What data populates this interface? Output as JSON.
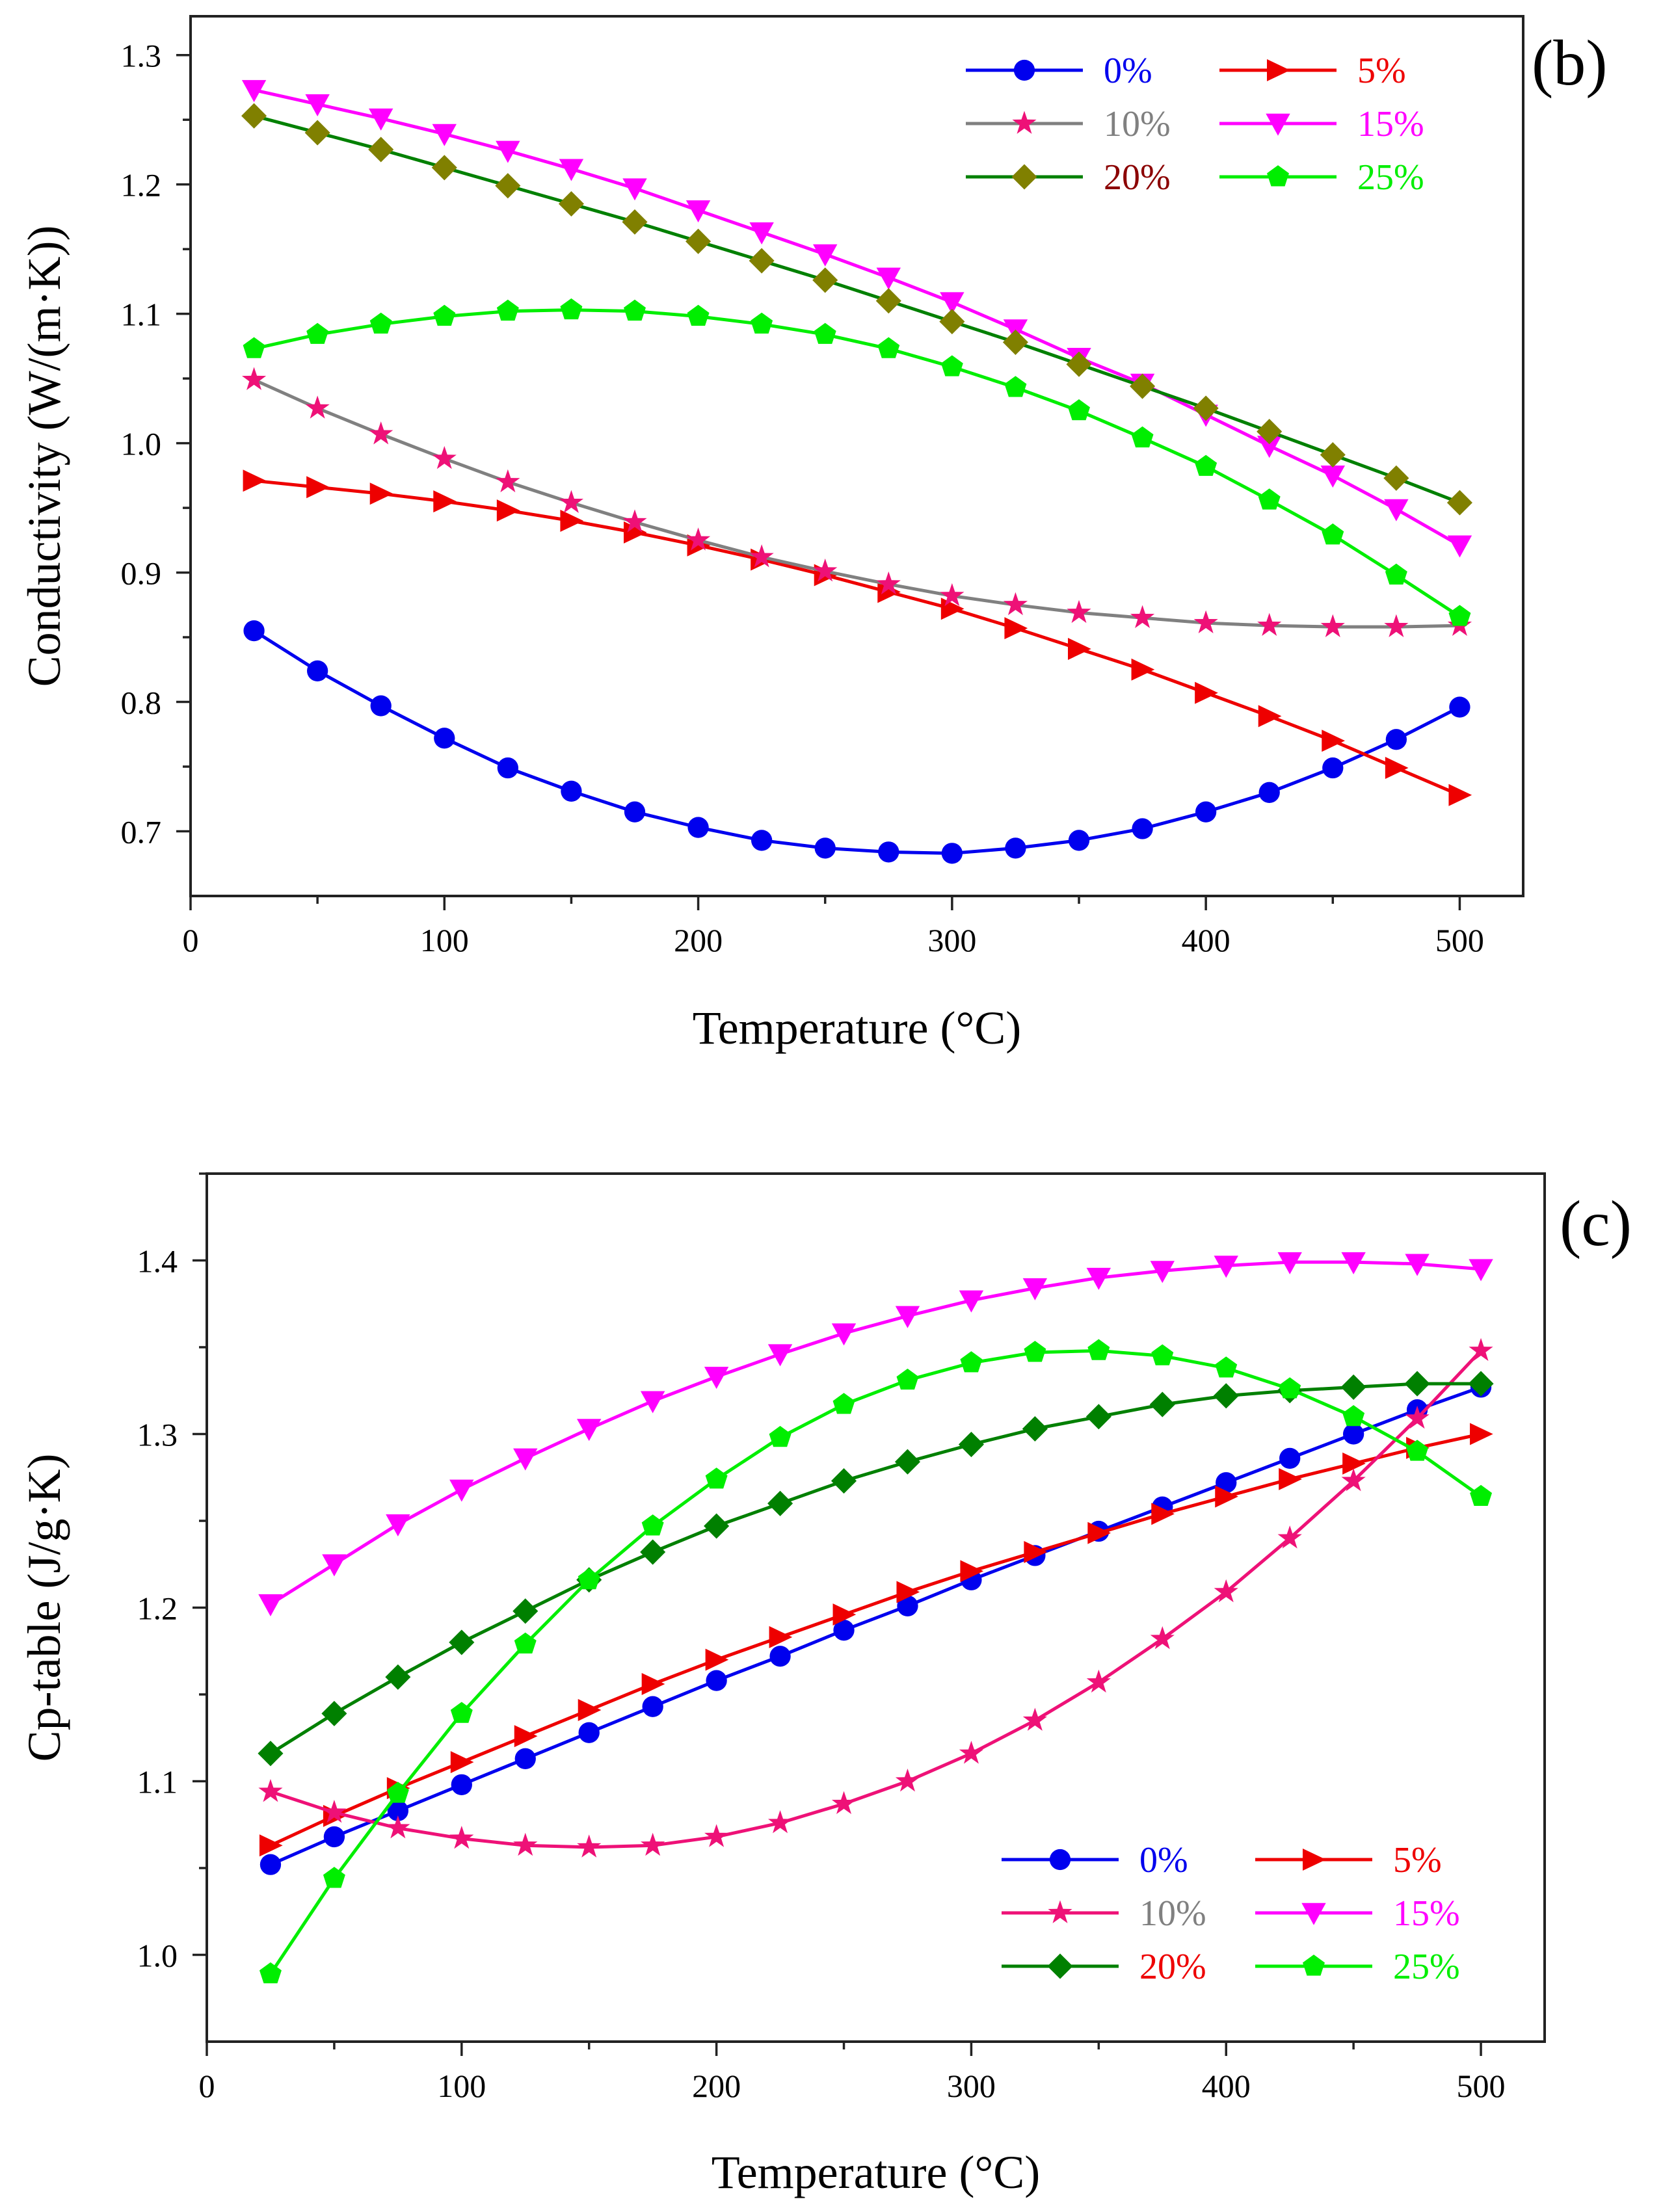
{
  "chart_data": [
    {
      "type": "line",
      "panel_label": "(b)",
      "xlabel": "Temperature (°C)",
      "ylabel": "Conductivity (W/(m·K))",
      "xlim": [
        0,
        525
      ],
      "ylim": [
        0.65,
        1.33
      ],
      "xticks": [
        0,
        100,
        200,
        300,
        400,
        500
      ],
      "xtick_labels": [
        "0",
        "100",
        "200",
        "300",
        "400",
        "500"
      ],
      "yticks": [
        0.7,
        0.8,
        0.9,
        1.0,
        1.1,
        1.2,
        1.3
      ],
      "ytick_labels": [
        "0.7",
        "0.8",
        "0.9",
        "1.0",
        "1.1",
        "1.2",
        "1.3"
      ],
      "legend_position": "top-right",
      "x": [
        25,
        50,
        75,
        100,
        125,
        150,
        175,
        200,
        225,
        250,
        275,
        300,
        325,
        350,
        375,
        400,
        425,
        450,
        475,
        500
      ],
      "series": [
        {
          "name": "0%",
          "line_color": "#0000EE",
          "label_color": "#0000EE",
          "marker": "circle",
          "values": [
            0.855,
            0.824,
            0.797,
            0.772,
            0.749,
            0.731,
            0.715,
            0.703,
            0.693,
            0.687,
            0.684,
            0.683,
            0.687,
            0.693,
            0.702,
            0.715,
            0.73,
            0.749,
            0.771,
            0.796
          ]
        },
        {
          "name": "5%",
          "line_color": "#EE0000",
          "label_color": "#EE0000",
          "marker": "triangle-right",
          "values": [
            0.971,
            0.966,
            0.961,
            0.955,
            0.948,
            0.94,
            0.931,
            0.921,
            0.91,
            0.898,
            0.885,
            0.872,
            0.857,
            0.841,
            0.825,
            0.807,
            0.789,
            0.77,
            0.749,
            0.728
          ]
        },
        {
          "name": "10%",
          "line_color": "#808080",
          "label_color": "#808080",
          "marker": "star",
          "marker_color": "#EE1177",
          "values": [
            1.049,
            1.027,
            1.007,
            0.988,
            0.97,
            0.954,
            0.939,
            0.925,
            0.912,
            0.901,
            0.891,
            0.882,
            0.875,
            0.869,
            0.865,
            0.861,
            0.859,
            0.858,
            0.858,
            0.859
          ]
        },
        {
          "name": "15%",
          "line_color": "#FF00FF",
          "label_color": "#FF00FF",
          "marker": "triangle-down",
          "values": [
            1.273,
            1.262,
            1.251,
            1.239,
            1.226,
            1.212,
            1.197,
            1.18,
            1.163,
            1.146,
            1.128,
            1.109,
            1.088,
            1.066,
            1.046,
            1.022,
            0.998,
            0.975,
            0.949,
            0.921
          ]
        },
        {
          "name": "20%",
          "line_color": "#008000",
          "label_color": "#8B0000",
          "marker": "diamond",
          "marker_color": "#808000",
          "values": [
            1.253,
            1.24,
            1.227,
            1.213,
            1.199,
            1.185,
            1.171,
            1.156,
            1.141,
            1.126,
            1.11,
            1.094,
            1.078,
            1.061,
            1.044,
            1.027,
            1.009,
            0.991,
            0.973,
            0.954
          ]
        },
        {
          "name": "25%",
          "line_color": "#00EE00",
          "label_color": "#00EE00",
          "marker": "pentagon",
          "values": [
            1.073,
            1.084,
            1.092,
            1.098,
            1.102,
            1.103,
            1.102,
            1.098,
            1.092,
            1.084,
            1.073,
            1.059,
            1.043,
            1.025,
            1.004,
            0.982,
            0.956,
            0.929,
            0.898,
            0.866
          ]
        }
      ]
    },
    {
      "type": "line",
      "panel_label": "(c)",
      "xlabel": "Temperature (°C)",
      "ylabel": "Cp-table (J/g·K)",
      "xlim": [
        0,
        525
      ],
      "ylim": [
        0.95,
        1.45
      ],
      "xticks": [
        0,
        100,
        200,
        300,
        400,
        500
      ],
      "xtick_labels": [
        "0",
        "100",
        "200",
        "300",
        "400",
        "500"
      ],
      "yticks": [
        1.0,
        1.1,
        1.2,
        1.3,
        1.4
      ],
      "ytick_labels": [
        "1.0",
        "1.1",
        "1.2",
        "1.3",
        "1.4"
      ],
      "legend_position": "bottom-right",
      "x": [
        25,
        50,
        75,
        100,
        125,
        150,
        175,
        200,
        225,
        250,
        275,
        300,
        325,
        350,
        375,
        400,
        425,
        450,
        475,
        500
      ],
      "series": [
        {
          "name": "0%",
          "line_color": "#0000EE",
          "label_color": "#0000EE",
          "marker": "circle",
          "values": [
            1.052,
            1.068,
            1.083,
            1.098,
            1.113,
            1.128,
            1.143,
            1.158,
            1.172,
            1.187,
            1.201,
            1.216,
            1.23,
            1.244,
            1.258,
            1.272,
            1.286,
            1.3,
            1.314,
            1.327
          ]
        },
        {
          "name": "5%",
          "line_color": "#EE0000",
          "label_color": "#EE0000",
          "marker": "triangle-right",
          "values": [
            1.063,
            1.08,
            1.096,
            1.111,
            1.126,
            1.141,
            1.156,
            1.17,
            1.183,
            1.196,
            1.209,
            1.221,
            1.232,
            1.243,
            1.254,
            1.264,
            1.274,
            1.283,
            1.292,
            1.3
          ]
        },
        {
          "name": "10%",
          "line_color": "#EE1177",
          "label_color": "#808080",
          "marker": "star",
          "values": [
            1.094,
            1.082,
            1.073,
            1.067,
            1.063,
            1.062,
            1.063,
            1.068,
            1.076,
            1.087,
            1.1,
            1.116,
            1.135,
            1.157,
            1.182,
            1.209,
            1.24,
            1.273,
            1.309,
            1.348
          ]
        },
        {
          "name": "15%",
          "line_color": "#FF00FF",
          "label_color": "#FF00FF",
          "marker": "triangle-down",
          "values": [
            1.202,
            1.225,
            1.248,
            1.268,
            1.286,
            1.303,
            1.319,
            1.333,
            1.346,
            1.358,
            1.368,
            1.377,
            1.384,
            1.39,
            1.394,
            1.397,
            1.399,
            1.399,
            1.398,
            1.395
          ]
        },
        {
          "name": "20%",
          "line_color": "#008000",
          "label_color": "#EE0000",
          "marker": "diamond",
          "values": [
            1.116,
            1.139,
            1.16,
            1.18,
            1.198,
            1.216,
            1.232,
            1.247,
            1.26,
            1.273,
            1.284,
            1.294,
            1.303,
            1.31,
            1.317,
            1.322,
            1.325,
            1.327,
            1.329,
            1.329
          ]
        },
        {
          "name": "25%",
          "line_color": "#00EE00",
          "label_color": "#00EE00",
          "marker": "pentagon",
          "values": [
            0.989,
            1.044,
            1.093,
            1.139,
            1.179,
            1.216,
            1.247,
            1.274,
            1.298,
            1.317,
            1.331,
            1.341,
            1.347,
            1.348,
            1.345,
            1.338,
            1.326,
            1.31,
            1.29,
            1.264
          ]
        }
      ]
    }
  ]
}
